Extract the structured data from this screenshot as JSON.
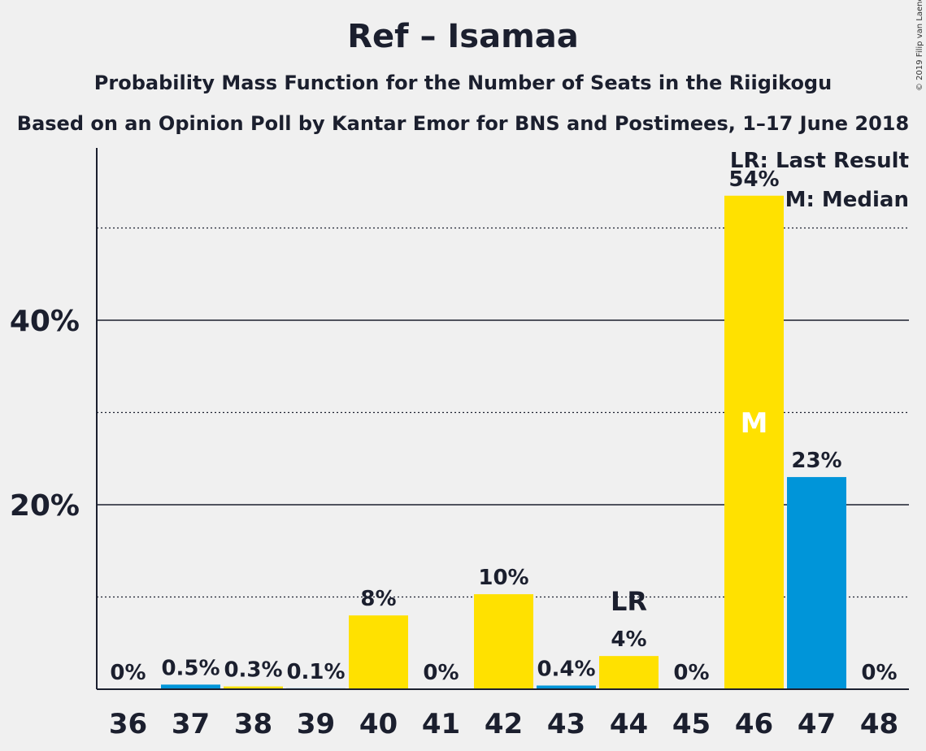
{
  "header": {
    "title": "Ref – Isamaa",
    "subtitle": "Probability Mass Function for the Number of Seats in the Riigikogu",
    "source": "Based on an Opinion Poll by Kantar Emor for BNS and Postimees, 1–17 June 2018",
    "copyright": "© 2019 Filip van Laenen"
  },
  "legend": {
    "last_result": "LR: Last Result",
    "median": "M: Median"
  },
  "colors": {
    "yellow": "#FFE100",
    "blue": "#0095D9",
    "background": "#f0f0f0",
    "text": "#1b1f2e"
  },
  "chart_data": {
    "type": "bar",
    "categories": [
      "36",
      "37",
      "38",
      "39",
      "40",
      "41",
      "42",
      "43",
      "44",
      "45",
      "46",
      "47",
      "48"
    ],
    "values": [
      0,
      0.5,
      0.3,
      0.1,
      8,
      0,
      10.3,
      0.4,
      3.6,
      0,
      53.5,
      23,
      0
    ],
    "value_labels": [
      "0%",
      "0.5%",
      "0.3%",
      "0.1%",
      "8%",
      "0%",
      "10%",
      "0.4%",
      "4%",
      "0%",
      "54%",
      "23%",
      "0%"
    ],
    "bar_colors": [
      "yellow",
      "blue",
      "yellow",
      "blue",
      "yellow",
      "blue",
      "yellow",
      "blue",
      "yellow",
      "blue",
      "yellow",
      "blue",
      "yellow"
    ],
    "ylim": [
      0,
      58
    ],
    "yticks_labeled": [
      {
        "value": 20,
        "label": "20%"
      },
      {
        "value": 40,
        "label": "40%"
      }
    ],
    "gridlines_solid": [
      20,
      40
    ],
    "gridlines_dotted": [
      10,
      30,
      50
    ],
    "annotations": [
      {
        "category": "44",
        "text": "LR"
      },
      {
        "category": "46",
        "text": "M"
      }
    ],
    "legend_position": "top-right"
  }
}
